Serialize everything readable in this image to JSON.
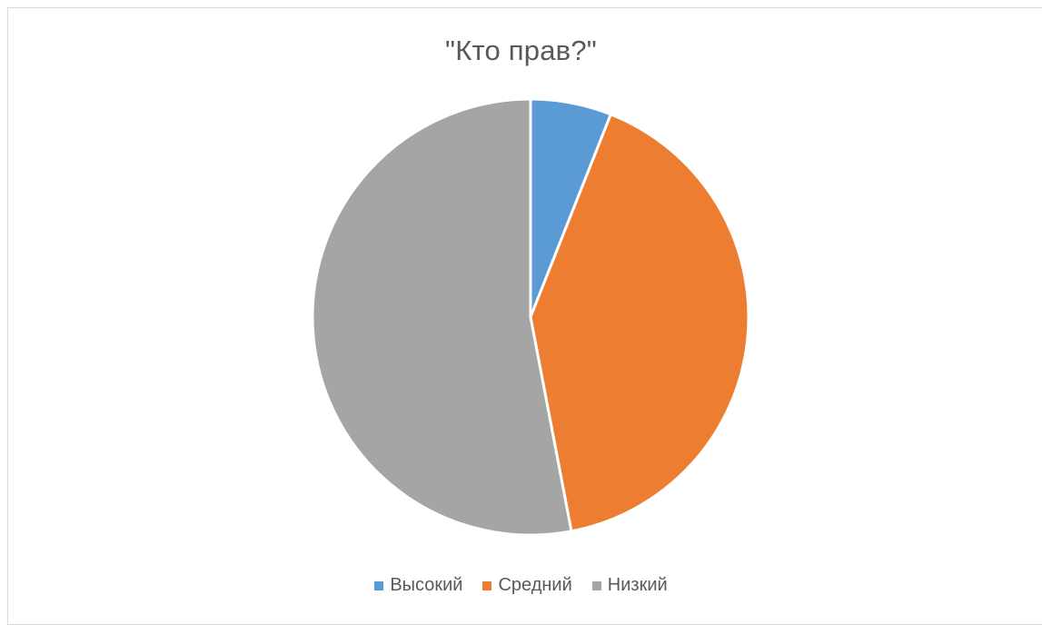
{
  "chart_data": {
    "type": "pie",
    "title": "\"Кто прав?\"",
    "categories": [
      "Высокий",
      "Средний",
      "Низкий"
    ],
    "values": [
      6,
      41,
      53
    ],
    "colors": [
      "#5b9bd5",
      "#ed7d31",
      "#a5a5a5"
    ],
    "start_angle_deg": 0,
    "direction": "clockwise",
    "legend_position": "bottom"
  }
}
